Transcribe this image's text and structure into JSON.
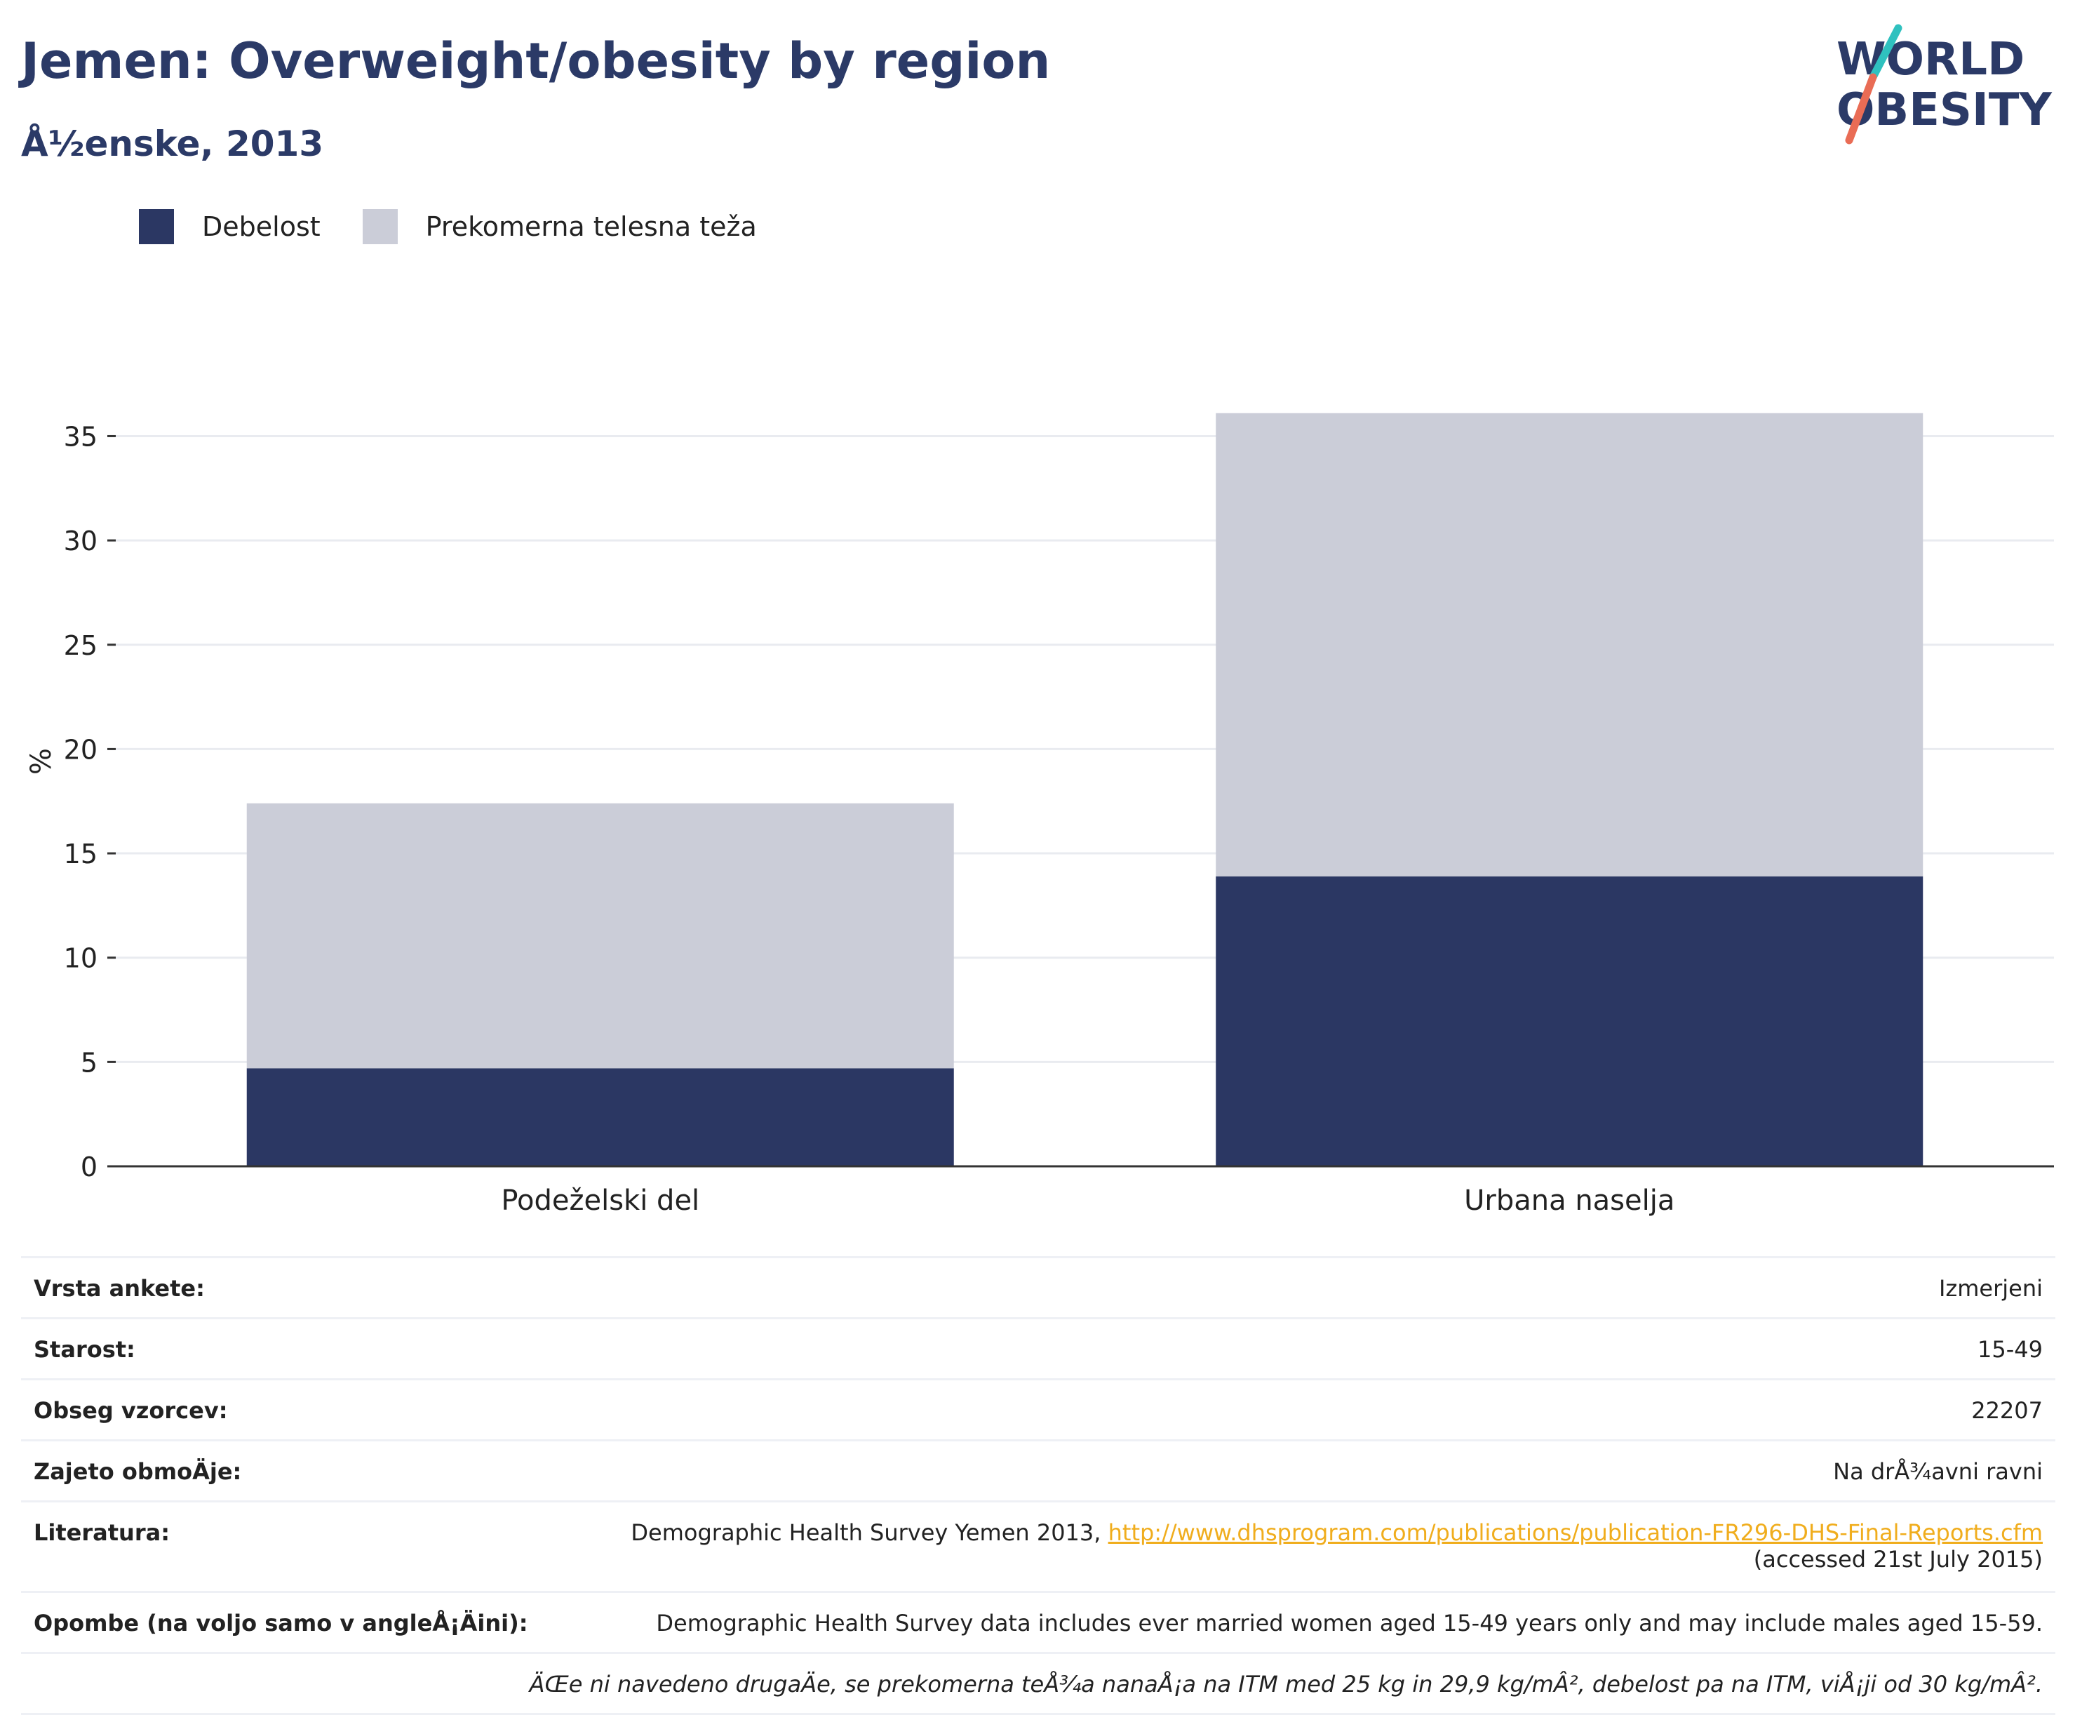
{
  "header": {
    "title": "Jemen: Overweight/obesity by region",
    "subtitle": "Å½enske, 2013"
  },
  "logo": {
    "line1": "WORLD",
    "line2": "OBESITY"
  },
  "colors": {
    "obesity": "#2b3763",
    "overweight": "#cbcdd8",
    "title": "#2b3a67",
    "link": "#f0ad1d"
  },
  "legend": {
    "obesity_label": "Debelost",
    "overweight_label": "Prekomerna telesna teža"
  },
  "chart_data": {
    "type": "bar",
    "stacked": true,
    "categories": [
      "Podeželski del",
      "Urbana naselja"
    ],
    "series": [
      {
        "name": "Debelost",
        "values": [
          4.7,
          13.9
        ]
      },
      {
        "name": "Prekomerna telesna teža",
        "values": [
          12.7,
          22.2
        ]
      }
    ],
    "ylabel": "%",
    "ylim": [
      0,
      37
    ],
    "yticks": [
      0,
      5,
      10,
      15,
      20,
      25,
      30,
      35
    ],
    "grid": true,
    "legend_position": "top-left"
  },
  "info": {
    "survey_type_label": "Vrsta ankete:",
    "survey_type_value": "Izmerjeni",
    "age_label": "Starost:",
    "age_value": "15-49",
    "sample_label": "Obseg vzorcev:",
    "sample_value": "22207",
    "area_label": "Zajeto obmoÄje:",
    "area_value": "Na drÅ¾avni ravni",
    "ref_label": "Literatura:",
    "ref_text": "Demographic Health Survey Yemen 2013, ",
    "ref_link": "http://www.dhsprogram.com/publications/publication-FR296-DHS-Final-Reports.cfm",
    "ref_accessed": "(accessed 21st July 2015)",
    "notes_label": "Opombe (na voljo samo v angleÅ¡Äini):",
    "notes_value": "Demographic Health Survey data includes ever married women aged 15-49 years only and may include males aged 15-59.",
    "definition_note": "ÄŒe ni navedeno drugaÄe, se prekomerna teÅ¾a nanaÅ¡a na ITM med 25 kg in 29,9 kg/mÂ², debelost pa na ITM, viÅ¡ji od 30 kg/mÂ²."
  }
}
